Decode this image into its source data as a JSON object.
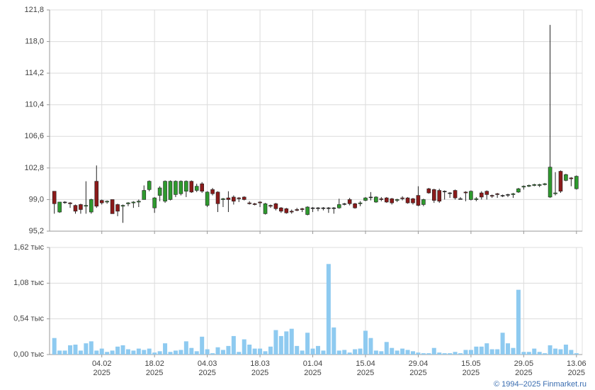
{
  "chart_data": [
    {
      "type": "candlestick",
      "xlim": [
        -0.9,
        100.1
      ],
      "ylim": [
        95.2,
        121.8
      ],
      "yticks": [
        {
          "value": 95.2,
          "label": "95,2"
        },
        {
          "value": 99.0,
          "label": "99,0"
        },
        {
          "value": 102.8,
          "label": "102,8"
        },
        {
          "value": 106.6,
          "label": "106,6"
        },
        {
          "value": 110.4,
          "label": "110,4"
        },
        {
          "value": 114.2,
          "label": "114,2"
        },
        {
          "value": 118.0,
          "label": "118,0"
        },
        {
          "value": 121.8,
          "label": "121,8"
        }
      ],
      "xticks": [
        9,
        19,
        29,
        39,
        49,
        59,
        69,
        79,
        89,
        99
      ],
      "grid": true,
      "up_color": "#2e9a2e",
      "down_color": "#8b1a1a",
      "open": [
        100.0,
        97.5,
        98.7,
        98.6,
        98.3,
        98.4,
        98.2,
        97.5,
        101.2,
        98.9,
        98.7,
        99.0,
        98.4,
        98.2,
        98.5,
        98.6,
        98.7,
        99.0,
        100.2,
        98.0,
        99.5,
        98.8,
        99.0,
        99.6,
        99.7,
        100.0,
        101.2,
        100.1,
        100.9,
        98.3,
        100.2,
        99.9,
        99.0,
        99.2,
        99.3,
        99.2,
        99.3,
        98.6,
        98.5,
        98.7,
        97.3,
        98.3,
        98.5,
        98.0,
        97.9,
        97.6,
        97.8,
        97.9,
        97.2,
        98.0,
        98.0,
        98.0,
        98.0,
        98.0,
        98.0,
        98.5,
        99.0,
        98.5,
        98.5,
        98.9,
        99.3,
        98.7,
        99.1,
        99.2,
        99.1,
        98.9,
        99.2,
        99.2,
        99.1,
        99.5,
        98.4,
        100.3,
        100.2,
        100.1,
        100.0,
        99.8,
        100.1,
        99.1,
        99.9,
        99.0,
        99.0,
        99.8,
        100.0,
        99.5,
        99.7,
        99.5,
        99.6,
        99.6,
        99.9,
        100.5,
        100.6,
        100.7,
        100.7,
        100.8,
        99.3,
        99.7,
        102.4,
        101.3,
        101.6,
        100.3
      ],
      "high": [
        100.0,
        98.7,
        98.8,
        98.7,
        98.4,
        98.5,
        101.2,
        99.1,
        103.1,
        99.0,
        98.9,
        99.0,
        98.5,
        98.4,
        98.7,
        98.8,
        99.0,
        100.7,
        101.3,
        99.3,
        100.6,
        101.3,
        101.3,
        101.3,
        101.3,
        101.3,
        101.3,
        100.9,
        101.1,
        100.0,
        100.4,
        100.0,
        99.2,
        100.0,
        99.5,
        99.3,
        99.4,
        98.8,
        98.6,
        98.8,
        98.6,
        98.4,
        98.6,
        98.1,
        98.0,
        97.8,
        98.0,
        98.0,
        98.2,
        98.1,
        98.1,
        98.1,
        98.1,
        98.1,
        99.1,
        98.6,
        99.2,
        98.6,
        98.8,
        99.3,
        99.9,
        99.4,
        99.3,
        99.3,
        99.2,
        99.1,
        99.4,
        99.3,
        99.2,
        100.6,
        99.1,
        100.4,
        100.3,
        100.3,
        100.1,
        99.9,
        100.2,
        99.3,
        100.0,
        100.1,
        99.3,
        100.0,
        100.1,
        99.6,
        99.8,
        99.6,
        99.7,
        99.8,
        100.4,
        100.7,
        100.8,
        100.9,
        100.9,
        101.0,
        120.0,
        102.3,
        102.5,
        102.1,
        101.7,
        101.9
      ],
      "low": [
        97.3,
        97.4,
        98.5,
        98.0,
        97.3,
        97.3,
        97.3,
        97.3,
        98.0,
        98.4,
        98.5,
        97.3,
        97.0,
        96.2,
        98.2,
        98.0,
        98.1,
        99.0,
        100.0,
        97.4,
        98.8,
        98.6,
        98.9,
        99.3,
        99.5,
        99.3,
        99.8,
        99.9,
        99.8,
        98.1,
        99.5,
        97.5,
        98.1,
        97.5,
        98.4,
        98.7,
        98.9,
        98.4,
        98.3,
        98.1,
        97.2,
        98.0,
        97.7,
        97.4,
        97.3,
        97.3,
        97.6,
        97.5,
        97.1,
        97.5,
        97.6,
        97.7,
        97.4,
        97.3,
        97.9,
        98.3,
        98.3,
        97.9,
        98.2,
        98.8,
        98.9,
        98.6,
        98.8,
        98.6,
        98.4,
        98.7,
        98.9,
        98.5,
        98.4,
        98.2,
        98.2,
        99.7,
        98.6,
        98.6,
        99.0,
        99.2,
        99.0,
        99.0,
        98.8,
        98.9,
        98.8,
        99.0,
        99.0,
        99.2,
        99.2,
        99.3,
        99.3,
        99.2,
        99.8,
        100.2,
        100.5,
        100.6,
        100.5,
        100.7,
        99.2,
        99.5,
        99.8,
        101.2,
        100.6,
        100.2
      ],
      "close": [
        98.5,
        98.7,
        98.7,
        98.5,
        97.6,
        97.8,
        98.3,
        99.0,
        98.2,
        98.6,
        98.8,
        97.3,
        97.6,
        98.3,
        98.6,
        98.7,
        98.8,
        100.1,
        101.2,
        99.2,
        100.4,
        101.2,
        101.2,
        101.2,
        101.2,
        101.2,
        99.9,
        100.6,
        100.0,
        99.9,
        99.7,
        98.5,
        99.1,
        99.0,
        98.8,
        99.1,
        99.0,
        98.5,
        98.4,
        98.6,
        98.5,
        98.2,
        97.9,
        97.6,
        97.4,
        97.5,
        97.7,
        97.8,
        98.1,
        98.0,
        98.0,
        98.0,
        98.0,
        98.0,
        98.4,
        98.5,
        98.5,
        98.0,
        98.6,
        99.2,
        99.3,
        99.3,
        99.0,
        98.7,
        98.6,
        99.0,
        99.1,
        98.6,
        98.6,
        98.3,
        99.0,
        99.8,
        98.9,
        98.8,
        100.0,
        99.8,
        99.2,
        99.1,
        99.8,
        100.0,
        99.1,
        99.3,
        99.6,
        99.4,
        99.6,
        99.5,
        99.6,
        99.7,
        100.3,
        100.6,
        100.7,
        100.8,
        100.8,
        100.9,
        102.9,
        99.8,
        100.0,
        102.0,
        101.5,
        101.8
      ]
    },
    {
      "type": "bar",
      "xlim": [
        -0.9,
        100.1
      ],
      "ylim": [
        0,
        1.62
      ],
      "yticks": [
        {
          "value": 0,
          "label": "0,00 тыс"
        },
        {
          "value": 0.54,
          "label": "0,54 тыс"
        },
        {
          "value": 1.08,
          "label": "1,08 тыс"
        },
        {
          "value": 1.62,
          "label": "1,62 тыс"
        }
      ],
      "xticks": [
        {
          "value": 9,
          "label": "04.02",
          "sublabel": "2025"
        },
        {
          "value": 19,
          "label": "18.02",
          "sublabel": "2025"
        },
        {
          "value": 29,
          "label": "04.03",
          "sublabel": "2025"
        },
        {
          "value": 39,
          "label": "18.03",
          "sublabel": "2025"
        },
        {
          "value": 49,
          "label": "01.04",
          "sublabel": "2025"
        },
        {
          "value": 59,
          "label": "15.04",
          "sublabel": "2025"
        },
        {
          "value": 69,
          "label": "29.04",
          "sublabel": "2025"
        },
        {
          "value": 79,
          "label": "15.05",
          "sublabel": "2025"
        },
        {
          "value": 89,
          "label": "29.05",
          "sublabel": "2025"
        },
        {
          "value": 99,
          "label": "13.06",
          "sublabel": "2025"
        }
      ],
      "grid": true,
      "color": "#8ecaf0",
      "values": [
        0.25,
        0.06,
        0.06,
        0.14,
        0.15,
        0.06,
        0.17,
        0.2,
        0.06,
        0.09,
        0.04,
        0.06,
        0.12,
        0.14,
        0.08,
        0.06,
        0.09,
        0.07,
        0.09,
        0.03,
        0.05,
        0.17,
        0.04,
        0.06,
        0.07,
        0.2,
        0.1,
        0.05,
        0.27,
        0.08,
        0.02,
        0.11,
        0.07,
        0.13,
        0.28,
        0.04,
        0.23,
        0.15,
        0.09,
        0.09,
        0.05,
        0.12,
        0.37,
        0.28,
        0.35,
        0.39,
        0.13,
        0.06,
        0.33,
        0.09,
        0.13,
        0.06,
        1.37,
        0.41,
        0.06,
        0.07,
        0.03,
        0.08,
        0.09,
        0.36,
        0.25,
        0.06,
        0.05,
        0.19,
        0.1,
        0.06,
        0.09,
        0.07,
        0.05,
        0.03,
        0.02,
        0.02,
        0.1,
        0.03,
        0.02,
        0.02,
        0.04,
        0.02,
        0.07,
        0.07,
        0.12,
        0.12,
        0.17,
        0.08,
        0.08,
        0.33,
        0.17,
        0.1,
        0.98,
        0.04,
        0.04,
        0.09,
        0.04,
        0.02,
        0.14,
        0.09,
        0.08,
        0.15,
        0.07,
        0.02
      ]
    }
  ],
  "credit": "© 1994–2025 Finmarket.ru"
}
